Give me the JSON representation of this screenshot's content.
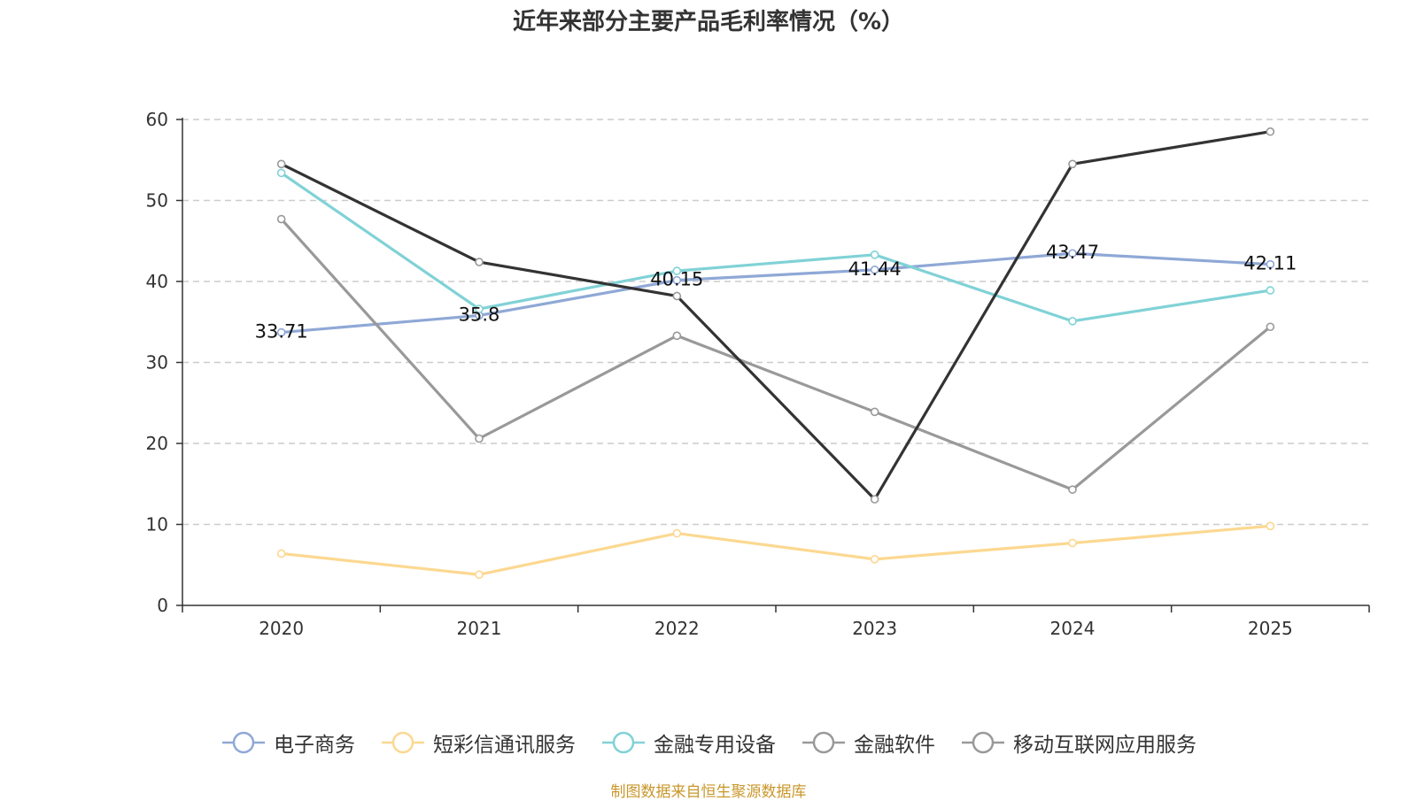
{
  "title": "近年来部分主要产品毛利率情况（%）",
  "source": "制图数据来自恒生聚源数据库",
  "chart_data": {
    "type": "line",
    "categories": [
      "2020",
      "2021",
      "2022",
      "2023",
      "2024",
      "2025"
    ],
    "ylim": [
      0,
      60
    ],
    "yticks": [
      0,
      10,
      20,
      30,
      40,
      50,
      60
    ],
    "grid": true,
    "legend_position": "bottom",
    "series": [
      {
        "name": "电子商务",
        "color": "#8fa8d6",
        "values": [
          33.71,
          35.8,
          40.15,
          41.44,
          43.47,
          42.11
        ],
        "labels": [
          "33.71",
          "35.8",
          "40.15",
          "41.44",
          "43.47",
          "42.11"
        ]
      },
      {
        "name": "短彩信通讯服务",
        "color": "#fcd890",
        "values": [
          6.4,
          3.8,
          8.9,
          5.7,
          7.7,
          9.8
        ]
      },
      {
        "name": "金融专用设备",
        "color": "#80d2d6",
        "values": [
          53.4,
          36.6,
          41.3,
          43.3,
          35.1,
          38.9
        ]
      },
      {
        "name": "金融软件",
        "color": "#999999",
        "values": [
          47.7,
          20.6,
          33.3,
          23.9,
          14.3,
          34.4
        ]
      },
      {
        "name": "移动互联网应用服务",
        "color": "#333333",
        "values": [
          54.5,
          42.4,
          38.2,
          13.1,
          54.5,
          58.5
        ]
      }
    ]
  },
  "legend": [
    {
      "name": "电子商务",
      "color": "#8fa8d6"
    },
    {
      "name": "短彩信通讯服务",
      "color": "#fcd890"
    },
    {
      "name": "金融专用设备",
      "color": "#80d2d6"
    },
    {
      "name": "金融软件",
      "color": "#999999"
    },
    {
      "name": "移动互联网应用服务",
      "color": "#999999"
    }
  ]
}
